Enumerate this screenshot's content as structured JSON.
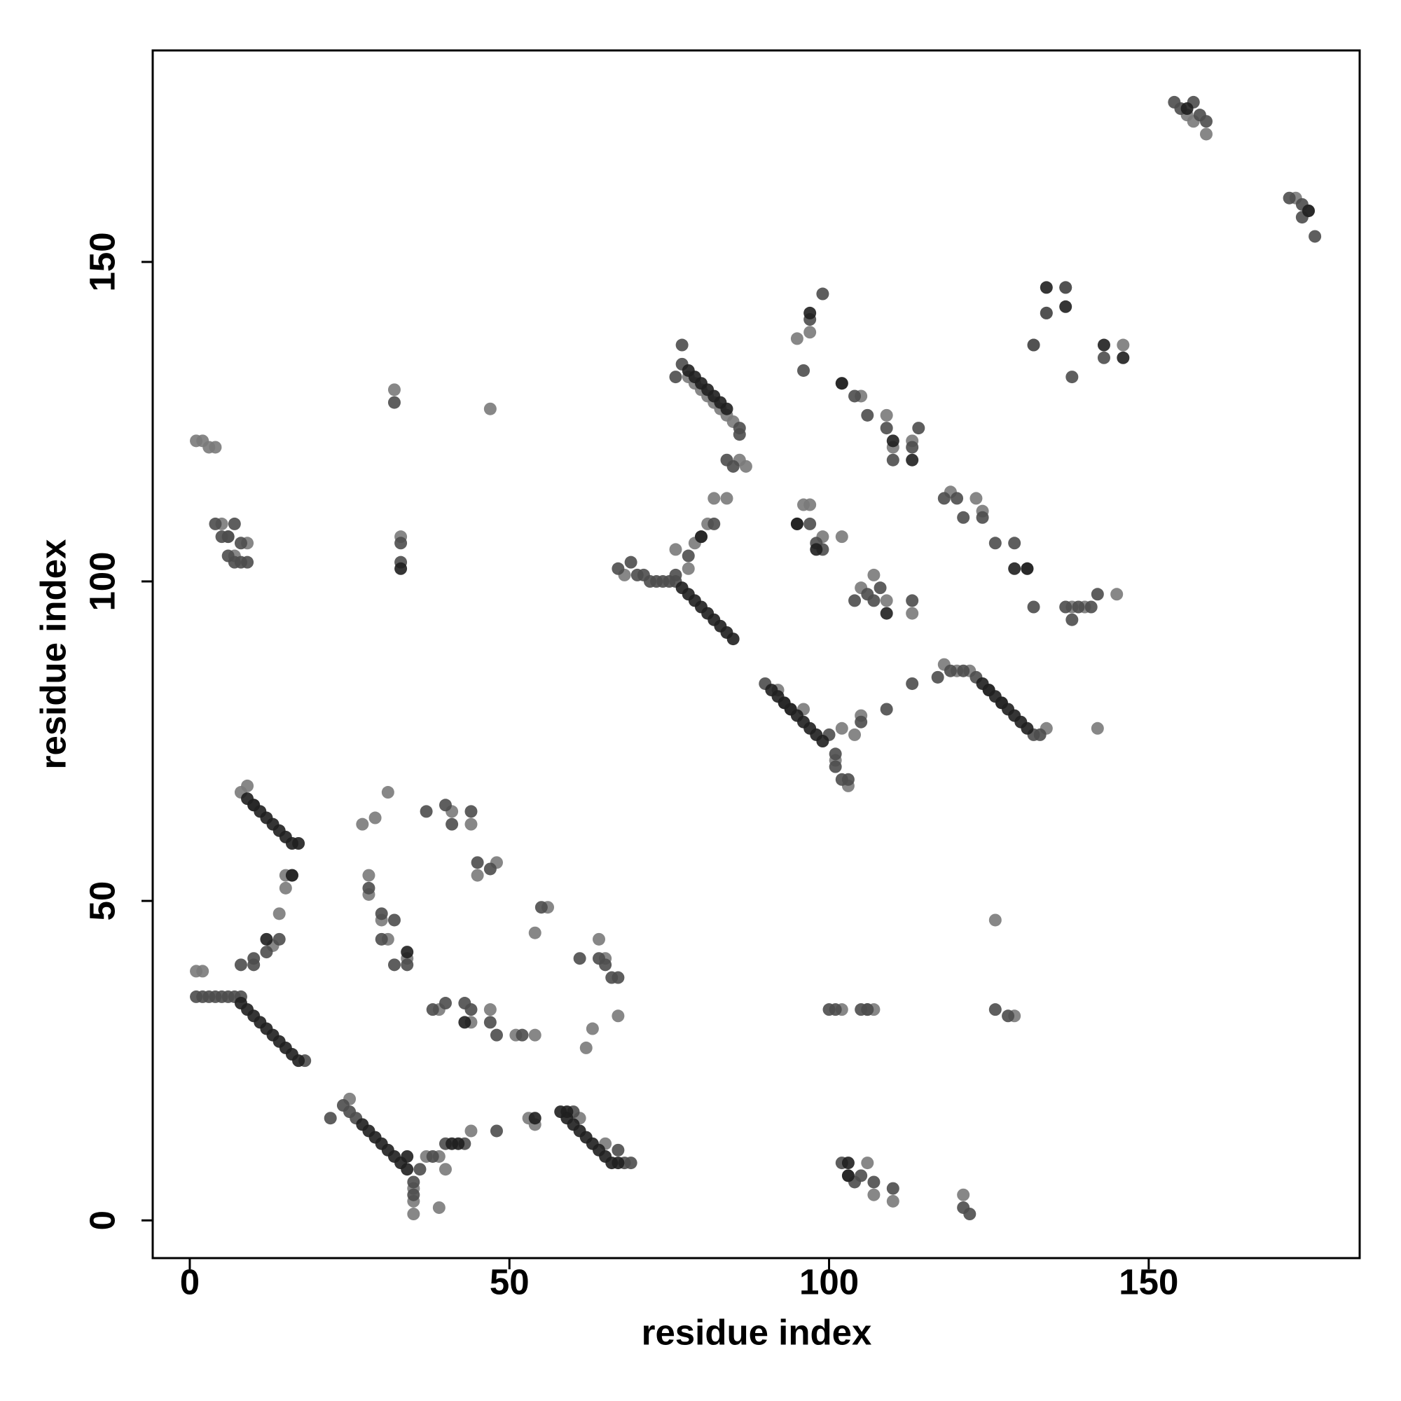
{
  "chart_data": {
    "type": "scatter",
    "xlabel": "residue index",
    "ylabel": "residue index",
    "xlim": [
      -5.8,
      183
    ],
    "ylim": [
      -5.9,
      183.1
    ],
    "xticks": [
      0,
      50,
      100,
      150
    ],
    "yticks": [
      0,
      50,
      100,
      150
    ],
    "grid": false,
    "series": [
      {
        "color": "#7a7a7a",
        "x": [
          1,
          2,
          1,
          2,
          3,
          4,
          5,
          6,
          7,
          9,
          15,
          16,
          15,
          14,
          13,
          8,
          9,
          10,
          25,
          35,
          35,
          35,
          37,
          39,
          39,
          40,
          44,
          53,
          54,
          61,
          65,
          27,
          29,
          31,
          28,
          28,
          30,
          31,
          34,
          41,
          44,
          45,
          48,
          39,
          44,
          47,
          51,
          54,
          56,
          54,
          64,
          65,
          67,
          62,
          63,
          32,
          47,
          33,
          68,
          76,
          78,
          79,
          80,
          81,
          82,
          84,
          78,
          79,
          80,
          81,
          82,
          83,
          84,
          85,
          87,
          86,
          92,
          93,
          94,
          96,
          101,
          102,
          103,
          104,
          105,
          95,
          97,
          96,
          102,
          105,
          109,
          110,
          113,
          97,
          99,
          102,
          105,
          107,
          109,
          113,
          119,
          123,
          124,
          131,
          118,
          120,
          122,
          125,
          127,
          134,
          142,
          138,
          140,
          145,
          132,
          134,
          137,
          146,
          156,
          157,
          159,
          173,
          175,
          102,
          106,
          107,
          126,
          129,
          103,
          106,
          107,
          110,
          121
        ],
        "values": [
          39,
          39,
          122,
          122,
          121,
          121,
          109,
          107,
          104,
          106,
          52,
          54,
          54,
          48,
          43,
          67,
          68,
          65,
          19,
          5,
          3,
          1,
          10,
          10,
          2,
          8,
          14,
          16,
          15,
          16,
          12,
          62,
          63,
          67,
          54,
          51,
          47,
          44,
          41,
          64,
          62,
          54,
          56,
          33,
          31,
          33,
          29,
          29,
          49,
          45,
          44,
          41,
          32,
          27,
          30,
          130,
          127,
          107,
          101,
          105,
          102,
          106,
          107,
          109,
          113,
          113,
          132,
          131,
          130,
          129,
          128,
          127,
          126,
          125,
          118,
          119,
          83,
          81,
          80,
          80,
          72,
          77,
          68,
          76,
          79,
          138,
          139,
          112,
          131,
          129,
          126,
          121,
          122,
          112,
          107,
          107,
          99,
          101,
          97,
          95,
          114,
          113,
          111,
          102,
          87,
          86,
          86,
          83,
          81,
          77,
          77,
          96,
          96,
          98,
          137,
          142,
          146,
          137,
          173,
          172,
          170,
          160,
          158,
          33,
          33,
          33,
          47,
          32,
          7,
          9,
          4,
          3,
          4
        ]
      },
      {
        "color": "#4d4d4d",
        "x": [
          1,
          2,
          3,
          4,
          5,
          6,
          7,
          8,
          18,
          8,
          10,
          10,
          12,
          14,
          22,
          24,
          25,
          26,
          35,
          35,
          36,
          38,
          40,
          43,
          48,
          60,
          67,
          68,
          69,
          28,
          30,
          30,
          32,
          32,
          34,
          37,
          40,
          41,
          44,
          45,
          47,
          38,
          40,
          43,
          44,
          47,
          48,
          52,
          55,
          61,
          64,
          65,
          66,
          67,
          32,
          33,
          33,
          4,
          5,
          6,
          7,
          8,
          9,
          6,
          7,
          8,
          67,
          69,
          70,
          71,
          72,
          73,
          74,
          75,
          76,
          76,
          78,
          82,
          77,
          77,
          76,
          86,
          84,
          85,
          86,
          90,
          100,
          101,
          101,
          102,
          103,
          105,
          109,
          113,
          97,
          99,
          96,
          104,
          106,
          109,
          110,
          113,
          114,
          95,
          97,
          98,
          99,
          104,
          106,
          107,
          108,
          113,
          118,
          120,
          121,
          124,
          126,
          129,
          132,
          117,
          119,
          121,
          123,
          132,
          133,
          137,
          139,
          141,
          142,
          138,
          132,
          134,
          137,
          138,
          143,
          154,
          155,
          157,
          158,
          159,
          172,
          174,
          174,
          176,
          100,
          101,
          105,
          106,
          126,
          128,
          102,
          104,
          105,
          107,
          110,
          121,
          122
        ],
        "values": [
          35,
          35,
          35,
          35,
          35,
          35,
          35,
          35,
          25,
          40,
          40,
          41,
          42,
          44,
          16,
          18,
          17,
          16,
          6,
          4,
          8,
          10,
          12,
          12,
          14,
          17,
          11,
          9,
          9,
          52,
          48,
          44,
          47,
          40,
          40,
          64,
          65,
          62,
          64,
          56,
          55,
          33,
          34,
          34,
          33,
          31,
          29,
          29,
          49,
          41,
          41,
          40,
          38,
          38,
          128,
          106,
          103,
          109,
          107,
          107,
          109,
          106,
          103,
          104,
          103,
          103,
          102,
          103,
          101,
          101,
          100,
          100,
          100,
          100,
          100,
          101,
          104,
          109,
          137,
          134,
          132,
          124,
          119,
          118,
          123,
          84,
          76,
          73,
          71,
          69,
          69,
          78,
          80,
          84,
          141,
          145,
          133,
          129,
          126,
          124,
          119,
          121,
          124,
          109,
          109,
          106,
          105,
          97,
          98,
          97,
          99,
          97,
          113,
          113,
          110,
          110,
          106,
          106,
          96,
          85,
          86,
          86,
          85,
          76,
          76,
          96,
          96,
          96,
          98,
          94,
          137,
          142,
          146,
          132,
          135,
          175,
          174,
          175,
          173,
          172,
          160,
          159,
          157,
          154,
          33,
          33,
          33,
          33,
          33,
          32,
          9,
          6,
          7,
          6,
          5,
          2,
          1
        ]
      },
      {
        "color": "#1f1f1f",
        "x": [
          8,
          9,
          10,
          11,
          12,
          13,
          14,
          15,
          16,
          17,
          9,
          10,
          11,
          12,
          13,
          14,
          15,
          16,
          17,
          27,
          28,
          29,
          30,
          31,
          32,
          33,
          34,
          59,
          60,
          61,
          62,
          63,
          64,
          65,
          66,
          67,
          77,
          78,
          79,
          80,
          81,
          82,
          83,
          84,
          85,
          78,
          79,
          80,
          81,
          82,
          83,
          84,
          91,
          92,
          93,
          94,
          95,
          96,
          97,
          98,
          99,
          124,
          125,
          126,
          127,
          128,
          129,
          130,
          131,
          12,
          16,
          34,
          43,
          54,
          103,
          103,
          109,
          110,
          113,
          95,
          98,
          102,
          129,
          131,
          134,
          137,
          143,
          146,
          156,
          175,
          41,
          42,
          34,
          33,
          58,
          59,
          80,
          97
        ],
        "values": [
          34,
          33,
          32,
          31,
          30,
          29,
          28,
          27,
          26,
          25,
          66,
          65,
          64,
          63,
          62,
          61,
          60,
          59,
          59,
          15,
          14,
          13,
          12,
          11,
          10,
          9,
          8,
          16,
          15,
          14,
          13,
          12,
          11,
          10,
          9,
          9,
          99,
          98,
          97,
          96,
          95,
          94,
          93,
          92,
          91,
          133,
          132,
          131,
          130,
          129,
          128,
          127,
          83,
          82,
          81,
          80,
          79,
          78,
          77,
          76,
          75,
          84,
          83,
          82,
          81,
          80,
          79,
          78,
          77,
          44,
          54,
          42,
          31,
          16,
          9,
          7,
          95,
          122,
          119,
          109,
          105,
          131,
          102,
          102,
          146,
          143,
          137,
          135,
          174,
          158,
          12,
          12,
          10,
          102,
          17,
          17,
          107,
          142
        ]
      }
    ]
  }
}
